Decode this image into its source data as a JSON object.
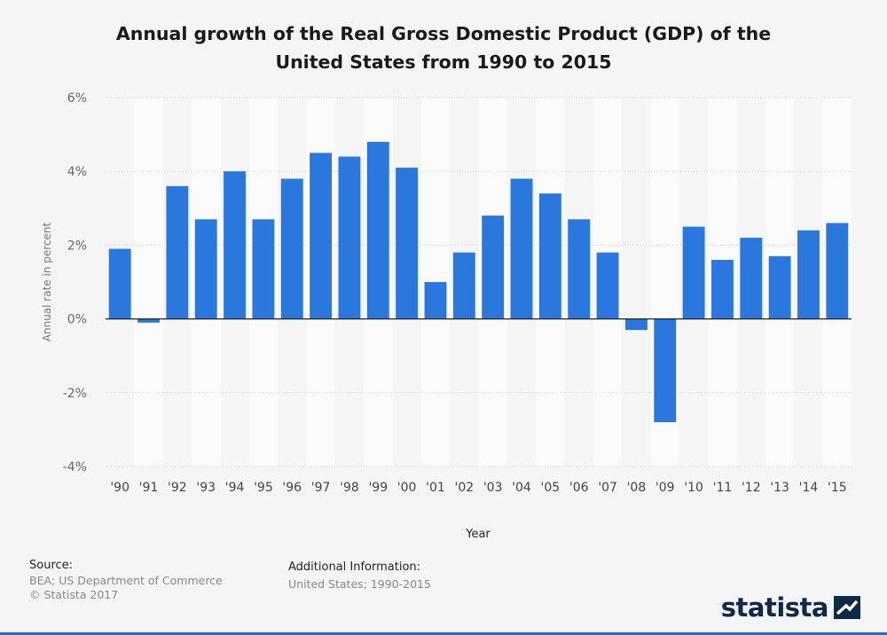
{
  "chart_data": {
    "type": "bar",
    "title": "Annual growth of the Real Gross Domestic Product (GDP) of the United States from 1990 to 2015",
    "title_lines": [
      "Annual growth of the Real Gross Domestic Product (GDP) of the",
      "United States from 1990 to 2015"
    ],
    "xlabel": "Year",
    "ylabel": "Annual rate in percent",
    "categories": [
      "'90",
      "'91",
      "'92",
      "'93",
      "'94",
      "'95",
      "'96",
      "'97",
      "'98",
      "'99",
      "'00",
      "'01",
      "'02",
      "'03",
      "'04",
      "'05",
      "'06",
      "'07",
      "'08",
      "'09",
      "'10",
      "'11",
      "'12",
      "'13",
      "'14",
      "'15"
    ],
    "values": [
      1.9,
      -0.1,
      3.6,
      2.7,
      4.0,
      2.7,
      3.8,
      4.5,
      4.4,
      4.8,
      4.1,
      1.0,
      1.8,
      2.8,
      3.8,
      3.4,
      2.7,
      1.8,
      -0.3,
      -2.8,
      2.5,
      1.6,
      2.2,
      1.7,
      2.4,
      2.6
    ],
    "ylim": [
      -4,
      6
    ],
    "yticks": [
      6,
      4,
      2,
      0,
      -2,
      -4
    ],
    "ytick_labels": [
      "6%",
      "4%",
      "2%",
      "0%",
      "-2%",
      "-4%"
    ],
    "grid": true,
    "bar_color": "#2a78de"
  },
  "source": {
    "heading": "Source:",
    "lines": [
      "BEA; US Department of Commerce",
      "© Statista 2017"
    ]
  },
  "additional_info": {
    "heading": "Additional Information:",
    "lines": [
      "United States; 1990-2015"
    ]
  },
  "branding": {
    "logo_text": "statista"
  }
}
